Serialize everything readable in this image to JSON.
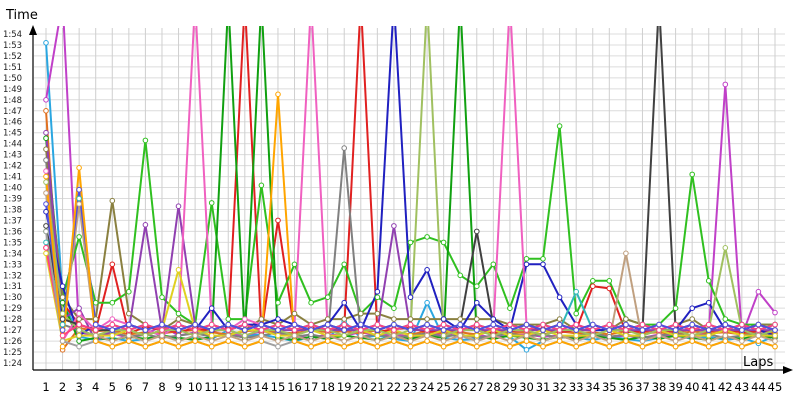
{
  "chart_data": {
    "type": "line",
    "xlabel": "Laps",
    "ylabel": "Time",
    "x": [
      1,
      2,
      3,
      4,
      5,
      6,
      7,
      8,
      9,
      10,
      11,
      12,
      13,
      14,
      15,
      16,
      17,
      18,
      19,
      20,
      21,
      22,
      23,
      24,
      25,
      26,
      27,
      28,
      29,
      30,
      31,
      32,
      33,
      34,
      35,
      36,
      37,
      38,
      39,
      40,
      41,
      42,
      43,
      44,
      45
    ],
    "xlim": [
      1,
      45
    ],
    "ylim": [
      83.5,
      114.5
    ],
    "y_unit": "seconds (lap time, shown as m:ss)",
    "y_ticks": [
      "1:24",
      "1:25",
      "1:26",
      "1:27",
      "1:28",
      "1:29",
      "1:30",
      "1:31",
      "1:32",
      "1:33",
      "1:34",
      "1:35",
      "1:36",
      "1:37",
      "1:38",
      "1:39",
      "1:40",
      "1:41",
      "1:42",
      "1:43",
      "1:44",
      "1:45",
      "1:46",
      "1:47",
      "1:48",
      "1:49",
      "1:50",
      "1:51",
      "1:52",
      "1:53",
      "1:54"
    ],
    "x_ticks": [
      "1",
      "2",
      "3",
      "4",
      "5",
      "6",
      "7",
      "8",
      "9",
      "10",
      "11",
      "12",
      "13",
      "14",
      "15",
      "16",
      "17",
      "18",
      "19",
      "20",
      "21",
      "22",
      "23",
      "24",
      "25",
      "26",
      "27",
      "28",
      "29",
      "30",
      "31",
      "32",
      "33",
      "34",
      "35",
      "36",
      "37",
      "38",
      "39",
      "40",
      "41",
      "42",
      "43",
      "44",
      "45"
    ],
    "grid": true,
    "legend": "none",
    "series": [
      {
        "color": "#2aa6e0",
        "values": [
          113.2,
          89.8,
          86.4,
          86.1,
          86.3,
          86.0,
          86.2,
          86.5,
          86.1,
          86.4,
          86.2,
          87.0,
          86.5,
          86.6,
          86.3,
          86.0,
          86.4,
          86.2,
          87.8,
          86.3,
          86.5,
          86.2,
          86.0,
          89.5,
          86.3,
          86.1,
          86.2,
          86.5,
          86.4,
          85.2,
          86.0,
          86.5,
          86.3,
          86.1,
          86.4,
          86.2,
          86.0,
          86.3,
          86.5,
          86.2,
          86.4,
          86.1,
          86.3,
          85.8,
          86.5
        ]
      },
      {
        "color": "#c040c8",
        "values": [
          108.0,
          117.0,
          86.8,
          86.5,
          86.7,
          86.3,
          86.6,
          87.4,
          86.5,
          86.8,
          86.4,
          86.6,
          86.5,
          86.9,
          86.7,
          86.4,
          86.3,
          86.6,
          86.5,
          86.8,
          86.5,
          86.6,
          86.4,
          86.5,
          86.7,
          86.4,
          86.6,
          86.3,
          86.5,
          86.6,
          86.4,
          86.5,
          86.3,
          86.6,
          86.4,
          86.5,
          86.3,
          86.6,
          86.4,
          86.5,
          86.7,
          109.4,
          86.5,
          90.5,
          88.6
        ]
      },
      {
        "color": "#e07020",
        "values": [
          107.0,
          85.2,
          87.2,
          86.9,
          87.0,
          86.6,
          86.8,
          86.7,
          86.9,
          87.0,
          86.8,
          86.6,
          86.9,
          87.0,
          86.8,
          86.7,
          87.0,
          86.8,
          86.9,
          86.7,
          87.0,
          86.8,
          86.6,
          86.9,
          86.7,
          86.8,
          86.6,
          86.9,
          86.7,
          86.8,
          86.6,
          86.9,
          86.7,
          86.8,
          86.6,
          86.9,
          86.7,
          86.8,
          86.6,
          86.9,
          86.7,
          86.8,
          86.6,
          86.9,
          86.7
        ]
      },
      {
        "color": "#e02020",
        "values": [
          94.5,
          89.5,
          87.5,
          87.0,
          93.0,
          86.7,
          87.3,
          87.0,
          86.8,
          87.2,
          86.9,
          87.1,
          117.0,
          86.8,
          97.0,
          86.9,
          87.2,
          87.0,
          87.1,
          117.0,
          86.8,
          87.1,
          87.2,
          86.8,
          87.0,
          86.9,
          87.2,
          86.7,
          86.9,
          87.0,
          87.1,
          86.8,
          87.0,
          91.0,
          90.8,
          86.8,
          86.9,
          87.0,
          86.8,
          87.1,
          86.9,
          87.0,
          86.8,
          86.9,
          87.0
        ]
      },
      {
        "color": "#30c020",
        "values": [
          96.0,
          90.0,
          95.5,
          89.5,
          89.5,
          90.5,
          104.3,
          90.0,
          88.5,
          87.5,
          98.6,
          88.0,
          88.0,
          100.2,
          89.5,
          93.0,
          89.5,
          90.0,
          93.0,
          88.5,
          90.0,
          89.0,
          95.0,
          95.5,
          95.0,
          92.0,
          91.0,
          93.0,
          89.0,
          93.5,
          93.5,
          105.6,
          88.5,
          91.5,
          91.5,
          88.0,
          87.5,
          87.5,
          89.0,
          101.2,
          91.5,
          88.0,
          87.5,
          87.5,
          87.5
        ]
      },
      {
        "color": "#10a010",
        "values": [
          104.5,
          89.5,
          86.0,
          86.3,
          86.1,
          86.4,
          86.2,
          86.5,
          86.3,
          86.1,
          86.4,
          117.0,
          86.2,
          117.0,
          86.3,
          86.1,
          86.4,
          86.2,
          86.5,
          86.3,
          86.1,
          86.4,
          86.2,
          86.5,
          86.3,
          117.0,
          86.4,
          86.2,
          86.5,
          86.3,
          86.1,
          86.4,
          86.2,
          86.5,
          86.3,
          86.1,
          86.4,
          86.2,
          86.5,
          86.3,
          86.1,
          86.4,
          86.2,
          86.5,
          86.3
        ]
      },
      {
        "color": "#808080",
        "values": [
          102.5,
          87.5,
          87.0,
          86.5,
          86.8,
          86.4,
          86.6,
          86.3,
          86.5,
          86.7,
          86.4,
          86.6,
          86.3,
          86.5,
          86.8,
          86.4,
          86.6,
          86.3,
          103.6,
          86.4,
          86.6,
          86.3,
          86.5,
          86.7,
          86.4,
          86.6,
          86.3,
          86.5,
          86.7,
          86.4,
          86.6,
          86.3,
          86.5,
          86.7,
          86.4,
          86.6,
          86.3,
          86.5,
          86.7,
          86.4,
          86.6,
          86.3,
          86.5,
          86.7,
          86.4
        ]
      },
      {
        "color": "#8a8040",
        "values": [
          103.5,
          90.0,
          88.0,
          88.0,
          98.8,
          88.5,
          87.5,
          87.0,
          88.0,
          87.5,
          87.0,
          87.5,
          87.0,
          88.0,
          87.5,
          88.5,
          87.5,
          88.0,
          88.0,
          88.5,
          88.5,
          88.0,
          88.0,
          88.0,
          88.0,
          88.0,
          88.0,
          88.0,
          87.5,
          87.5,
          87.5,
          88.0,
          87.0,
          87.0,
          87.0,
          88.0,
          87.5,
          87.0,
          87.5,
          88.0,
          87.0,
          87.0,
          87.0,
          87.5,
          87.5
        ]
      },
      {
        "color": "#9040b0",
        "values": [
          105.0,
          88.0,
          89.0,
          86.0,
          87.0,
          87.0,
          96.6,
          87.0,
          98.3,
          87.5,
          87.0,
          87.0,
          87.5,
          87.0,
          87.0,
          87.0,
          87.0,
          87.0,
          87.0,
          87.0,
          87.0,
          96.5,
          87.0,
          87.0,
          87.0,
          87.0,
          87.0,
          87.0,
          87.0,
          87.0,
          87.0,
          87.0,
          87.0,
          87.0,
          87.0,
          87.0,
          87.0,
          87.0,
          87.0,
          87.0,
          87.0,
          87.0,
          87.0,
          87.0,
          87.0
        ]
      },
      {
        "color": "#2020c0",
        "values": [
          97.8,
          91.0,
          86.5,
          87.5,
          87.0,
          87.5,
          87.0,
          86.5,
          87.5,
          87.0,
          89.0,
          87.0,
          87.5,
          87.5,
          88.0,
          87.5,
          87.0,
          87.5,
          89.5,
          87.0,
          90.5,
          117.0,
          90.0,
          92.5,
          88.0,
          87.0,
          89.5,
          88.0,
          87.0,
          93.0,
          93.0,
          90.0,
          87.5,
          87.0,
          87.0,
          87.0,
          87.5,
          87.0,
          87.0,
          89.0,
          89.5,
          87.0,
          87.5,
          87.0,
          86.5
        ]
      },
      {
        "color": "#f060c0",
        "values": [
          101.5,
          86.0,
          88.5,
          87.0,
          88.0,
          87.5,
          87.0,
          86.5,
          87.5,
          117.0,
          87.5,
          87.0,
          88.0,
          87.5,
          87.0,
          87.5,
          117.0,
          87.0,
          87.5,
          87.0,
          87.5,
          87.0,
          87.5,
          87.0,
          87.5,
          87.0,
          87.5,
          87.0,
          117.0,
          87.5,
          87.0,
          87.5,
          87.0,
          87.5,
          87.0,
          87.5,
          87.0,
          87.5,
          87.0,
          87.5,
          87.0,
          87.5,
          87.0,
          87.5,
          87.0
        ]
      },
      {
        "color": "#e0d020",
        "values": [
          94.0,
          86.0,
          86.5,
          86.5,
          86.5,
          87.0,
          86.5,
          87.0,
          92.5,
          87.0,
          86.5,
          86.5,
          87.0,
          87.0,
          86.5,
          86.5,
          87.0,
          86.5,
          86.5,
          87.0,
          86.5,
          87.0,
          86.5,
          86.5,
          87.0,
          86.5,
          86.5,
          87.0,
          86.5,
          86.5,
          87.0,
          86.5,
          86.5,
          86.5,
          87.0,
          86.5,
          86.5,
          87.0,
          86.5,
          86.5,
          86.5,
          87.0,
          86.5,
          86.5,
          86.5
        ]
      },
      {
        "color": "#a0c060",
        "values": [
          100.5,
          88.5,
          87.0,
          86.5,
          87.0,
          87.0,
          86.5,
          87.0,
          87.0,
          86.5,
          87.0,
          87.0,
          86.5,
          87.0,
          87.0,
          86.5,
          87.0,
          87.0,
          86.5,
          87.0,
          87.0,
          86.5,
          87.0,
          117.0,
          86.5,
          87.0,
          87.0,
          86.5,
          87.0,
          87.0,
          86.5,
          87.0,
          87.0,
          86.5,
          87.0,
          87.0,
          86.5,
          87.0,
          87.0,
          86.5,
          87.0,
          94.5,
          87.0,
          86.5,
          87.0
        ]
      },
      {
        "color": "#404040",
        "values": [
          96.5,
          88.0,
          87.5,
          87.0,
          87.0,
          87.5,
          87.0,
          87.5,
          87.0,
          87.5,
          87.0,
          87.5,
          87.0,
          87.5,
          87.0,
          87.5,
          87.0,
          87.5,
          87.0,
          87.5,
          87.0,
          87.5,
          87.0,
          87.5,
          87.0,
          87.5,
          96.0,
          87.5,
          87.0,
          87.5,
          87.0,
          87.5,
          87.0,
          87.5,
          87.0,
          87.5,
          87.0,
          117.0,
          87.0,
          87.5,
          87.0,
          87.5,
          87.0,
          87.5,
          87.0
        ]
      },
      {
        "color": "#30b8b8",
        "values": [
          95.0,
          87.5,
          99.0,
          87.0,
          87.5,
          87.0,
          87.5,
          87.0,
          87.5,
          87.0,
          87.5,
          87.0,
          87.5,
          87.0,
          87.5,
          87.0,
          87.5,
          87.0,
          87.5,
          87.0,
          87.5,
          87.0,
          87.5,
          87.0,
          87.5,
          87.0,
          87.5,
          87.0,
          87.5,
          87.0,
          87.5,
          87.0,
          90.5,
          87.0,
          87.5,
          87.0,
          87.5,
          87.0,
          87.5,
          87.0,
          87.5,
          87.0,
          87.5,
          87.0,
          87.5
        ]
      },
      {
        "color": "#c0a080",
        "values": [
          99.5,
          86.5,
          98.5,
          86.5,
          86.0,
          86.5,
          86.0,
          86.5,
          86.0,
          86.5,
          86.0,
          86.5,
          86.0,
          86.5,
          86.0,
          86.5,
          86.0,
          86.5,
          86.0,
          86.5,
          86.0,
          86.5,
          86.0,
          86.5,
          86.0,
          86.5,
          86.0,
          86.5,
          86.0,
          86.5,
          86.0,
          86.5,
          86.0,
          86.5,
          86.0,
          94.0,
          86.0,
          86.5,
          86.0,
          86.5,
          86.0,
          86.5,
          86.0,
          86.5,
          86.0
        ]
      },
      {
        "color": "#ff4080",
        "values": [
          94.5,
          86.5,
          87.5,
          87.0,
          87.5,
          87.0,
          87.5,
          87.0,
          87.5,
          87.0,
          87.5,
          87.0,
          87.5,
          87.0,
          87.5,
          87.0,
          87.5,
          87.0,
          87.5,
          87.0,
          87.5,
          87.0,
          87.5,
          87.0,
          87.5,
          87.0,
          87.5,
          87.0,
          87.5,
          87.0,
          87.5,
          87.0,
          87.5,
          87.0,
          87.5,
          87.0,
          87.5,
          87.0,
          87.5,
          87.0,
          87.5,
          87.0,
          87.5,
          87.0,
          87.5
        ]
      },
      {
        "color": "#a0a0a0",
        "values": [
          96.0,
          86.0,
          85.5,
          86.0,
          85.5,
          86.0,
          85.5,
          86.0,
          85.5,
          86.0,
          85.5,
          86.0,
          85.5,
          86.0,
          85.5,
          86.0,
          85.5,
          86.0,
          85.5,
          86.0,
          85.5,
          86.0,
          85.5,
          86.0,
          85.5,
          86.0,
          85.5,
          86.0,
          85.5,
          86.0,
          85.5,
          86.0,
          85.5,
          86.0,
          85.5,
          86.0,
          85.5,
          86.0,
          85.5,
          86.0,
          85.5,
          86.0,
          85.5,
          86.0,
          85.5
        ]
      },
      {
        "color": "#5050e0",
        "values": [
          98.5,
          87.0,
          99.8,
          87.5,
          87.0,
          87.5,
          87.0,
          87.5,
          87.0,
          87.5,
          87.0,
          87.5,
          87.0,
          87.5,
          87.0,
          87.5,
          87.0,
          87.5,
          87.0,
          87.5,
          87.0,
          87.5,
          87.0,
          87.5,
          87.0,
          87.5,
          87.0,
          87.5,
          87.0,
          87.5,
          87.0,
          87.5,
          87.0,
          87.5,
          87.0,
          87.5,
          87.0,
          87.5,
          87.0,
          87.5,
          87.0,
          87.5,
          87.0,
          87.5,
          87.0
        ]
      },
      {
        "color": "#ffa500",
        "values": [
          101.0,
          85.5,
          101.8,
          86.0,
          85.5,
          86.0,
          85.5,
          86.0,
          85.5,
          86.0,
          85.5,
          86.0,
          85.5,
          86.0,
          108.5,
          86.0,
          85.5,
          86.0,
          85.5,
          86.0,
          85.5,
          86.0,
          85.5,
          86.0,
          85.5,
          86.0,
          85.5,
          86.0,
          85.5,
          86.0,
          85.5,
          86.0,
          85.5,
          86.0,
          85.5,
          86.0,
          85.5,
          86.0,
          85.5,
          86.0,
          85.5,
          86.0,
          85.5,
          86.0,
          85.5
        ]
      }
    ]
  }
}
